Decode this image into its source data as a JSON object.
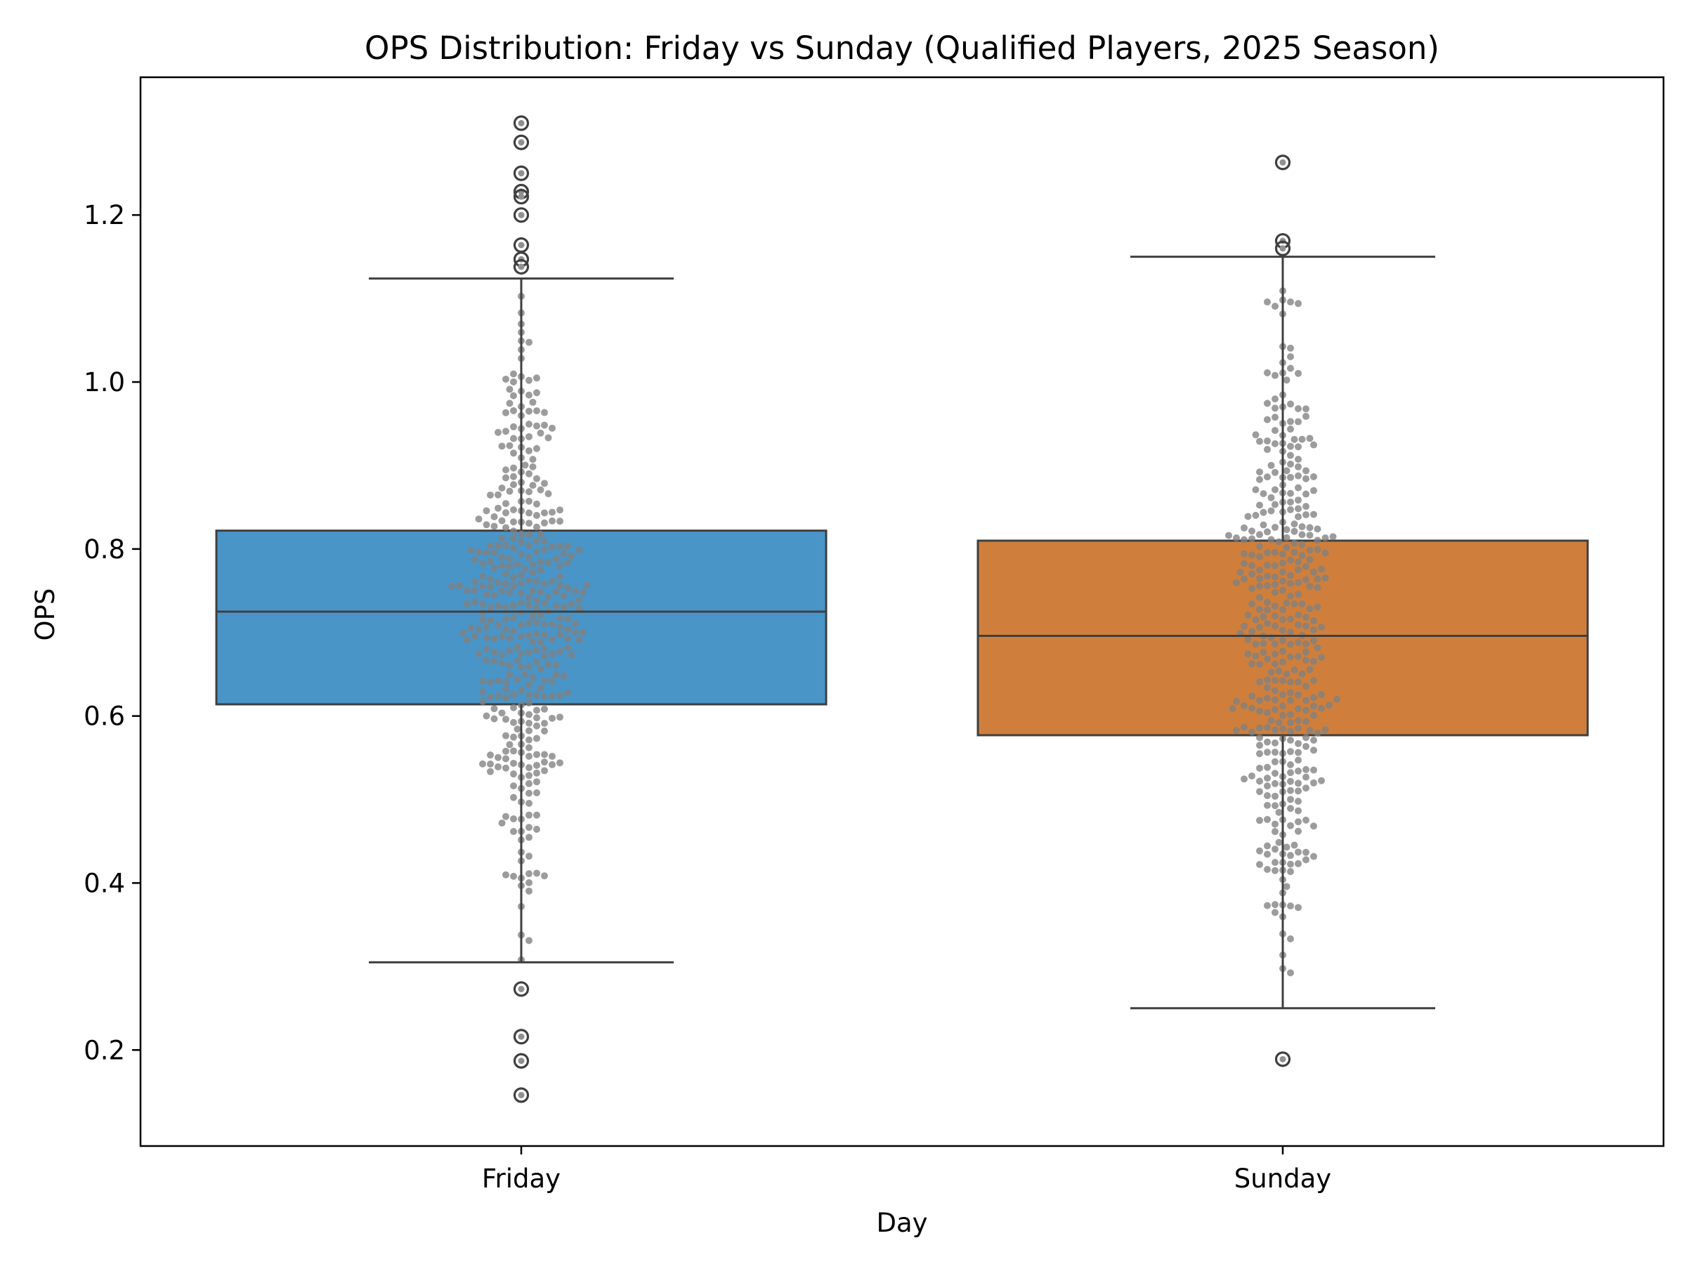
{
  "chart_data": {
    "type": "box",
    "title": "OPS Distribution: Friday vs Sunday (Qualified Players, 2025 Season)",
    "xlabel": "Day",
    "ylabel": "OPS",
    "ylim": [
      0.085,
      1.365
    ],
    "yticks": [
      "0.2",
      "0.4",
      "0.6",
      "0.8",
      "1.0",
      "1.2"
    ],
    "grid": false,
    "categories": [
      "Friday",
      "Sunday"
    ],
    "series": [
      {
        "category": "Friday",
        "color": "#4995c8",
        "q1": 0.614,
        "median": 0.725,
        "q3": 0.822,
        "whisker_low": 0.305,
        "whisker_high": 1.124,
        "outliers": [
          1.31,
          1.287,
          1.25,
          1.228,
          1.222,
          1.2,
          1.164,
          1.147,
          1.138,
          0.273,
          0.216,
          0.187,
          0.146
        ]
      },
      {
        "category": "Sunday",
        "color": "#cf7f3b",
        "q1": 0.577,
        "median": 0.696,
        "q3": 0.81,
        "whisker_low": 0.25,
        "whisker_high": 1.15,
        "outliers": [
          1.263,
          1.169,
          1.16,
          0.189
        ]
      }
    ],
    "swarm_point_color": "#808080"
  }
}
